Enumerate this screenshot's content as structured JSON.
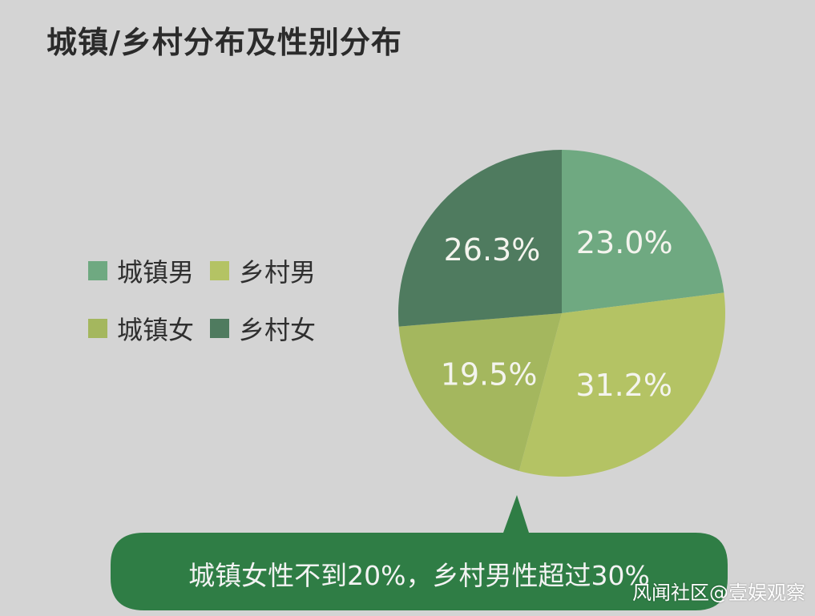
{
  "chart_data": {
    "type": "pie",
    "title": "城镇/乡村分布及性别分布",
    "slices": [
      {
        "label": "城镇男",
        "value": 23.0,
        "value_label": "23.0%",
        "color": "#6fa981"
      },
      {
        "label": "乡村男",
        "value": 31.2,
        "value_label": "31.2%",
        "color": "#b4c364"
      },
      {
        "label": "城镇女",
        "value": 19.5,
        "value_label": "19.5%",
        "color": "#a4b75e"
      },
      {
        "label": "乡村女",
        "value": 26.3,
        "value_label": "26.3%",
        "color": "#4f7b5f"
      }
    ],
    "legend_position": "left"
  },
  "callout": {
    "text": "城镇女性不到20%，乡村男性超过30%",
    "color": "#2f7d45"
  },
  "watermark": "风闻社区@壹娱观察"
}
